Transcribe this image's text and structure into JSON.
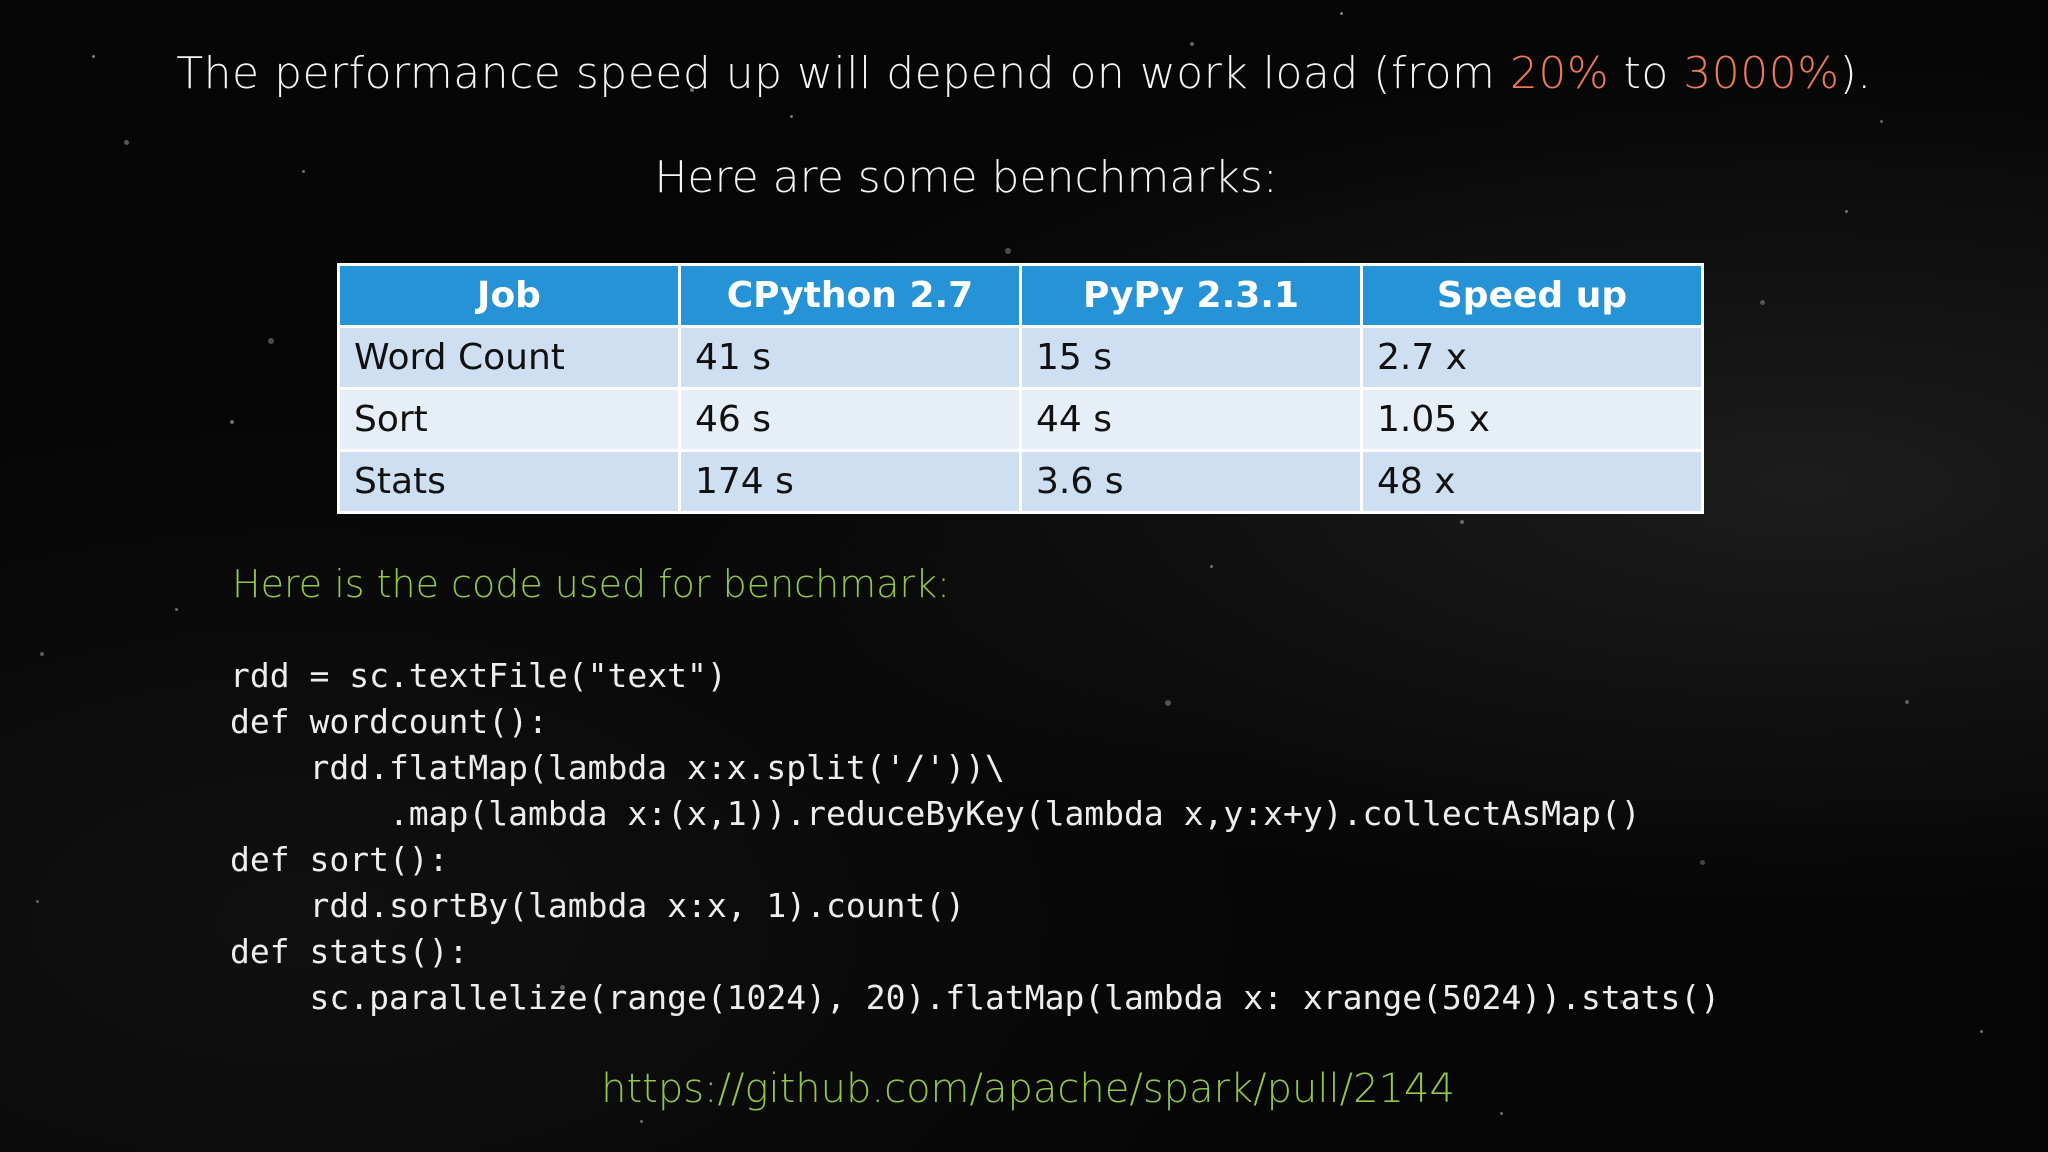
{
  "headline": {
    "prefix": "The performance speed up will depend on work load (from ",
    "low": "20%",
    "middle": " to ",
    "high": "3000%",
    "suffix": ")."
  },
  "subhead": "Here are some benchmarks:",
  "table": {
    "headers": [
      "Job",
      "CPython 2.7",
      "PyPy 2.3.1",
      "Speed up"
    ],
    "rows": [
      [
        "Word Count",
        "41 s",
        "15 s",
        "2.7 x"
      ],
      [
        "Sort",
        "46 s",
        "44 s",
        "1.05 x"
      ],
      [
        "Stats",
        "174 s",
        "3.6 s",
        "48 x"
      ]
    ]
  },
  "code_heading": "Here is the code used for benchmark:",
  "code_lines": [
    "rdd = sc.textFile(\"text\")",
    "def wordcount():",
    "    rdd.flatMap(lambda x:x.split('/'))\\",
    "        .map(lambda x:(x,1)).reduceByKey(lambda x,y:x+y).collectAsMap()",
    "def sort():",
    "    rdd.sortBy(lambda x:x, 1).count()",
    "def stats():",
    "    sc.parallelize(range(1024), 20).flatMap(lambda x: xrange(5024)).stats()"
  ],
  "link": "https://github.com/apache/spark/pull/2144",
  "colors": {
    "accent": "#ec7a55",
    "header_blue": "#2593d6",
    "green": "#93c648"
  }
}
